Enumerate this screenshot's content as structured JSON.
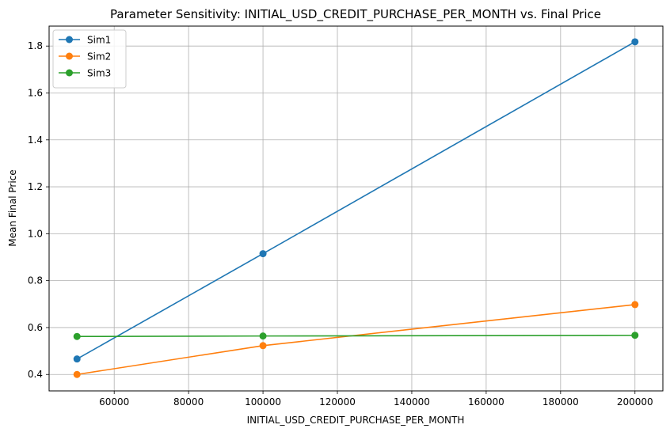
{
  "chart_data": {
    "type": "line",
    "title": "Parameter Sensitivity: INITIAL_USD_CREDIT_PURCHASE_PER_MONTH vs. Final Price",
    "xlabel": "INITIAL_USD_CREDIT_PURCHASE_PER_MONTH",
    "ylabel": "Mean Final Price",
    "xlim": [
      42500,
      207500
    ],
    "ylim": [
      0.33,
      1.885
    ],
    "xticks": [
      60000,
      80000,
      100000,
      120000,
      140000,
      160000,
      180000,
      200000
    ],
    "yticks": [
      0.4,
      0.6,
      0.8,
      1.0,
      1.2,
      1.4,
      1.6,
      1.8
    ],
    "xtick_labels": [
      "60000",
      "80000",
      "100000",
      "120000",
      "140000",
      "160000",
      "180000",
      "200000"
    ],
    "ytick_labels": [
      "0.4",
      "0.6",
      "0.8",
      "1.0",
      "1.2",
      "1.4",
      "1.6",
      "1.8"
    ],
    "grid": true,
    "legend_position": "top-left",
    "x": [
      50000,
      100000,
      200000
    ],
    "series": [
      {
        "name": "Sim1",
        "color": "#1f77b4",
        "values": [
          0.466,
          0.915,
          1.818
        ]
      },
      {
        "name": "Sim2",
        "color": "#ff7f0e",
        "values": [
          0.4,
          0.523,
          0.698
        ]
      },
      {
        "name": "Sim3",
        "color": "#2ca02c",
        "values": [
          0.562,
          0.564,
          0.567
        ]
      }
    ]
  }
}
